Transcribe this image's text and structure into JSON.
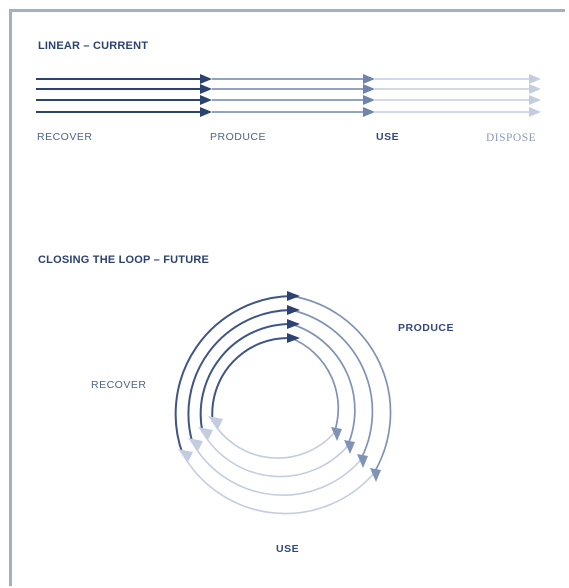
{
  "linear": {
    "title": "LINEAR – CURRENT",
    "stages": [
      "RECOVER",
      "PRODUCE",
      "USE",
      "DISPOSE"
    ]
  },
  "loop": {
    "title": "CLOSING THE LOOP – FUTURE",
    "stages": {
      "produce": "PRODUCE",
      "recover": "RECOVER",
      "use": "USE"
    }
  },
  "colors": {
    "dark": "#2c4270",
    "mid": "#7f92b8",
    "light": "#c4cce0",
    "frame": "#9fb0c8"
  }
}
